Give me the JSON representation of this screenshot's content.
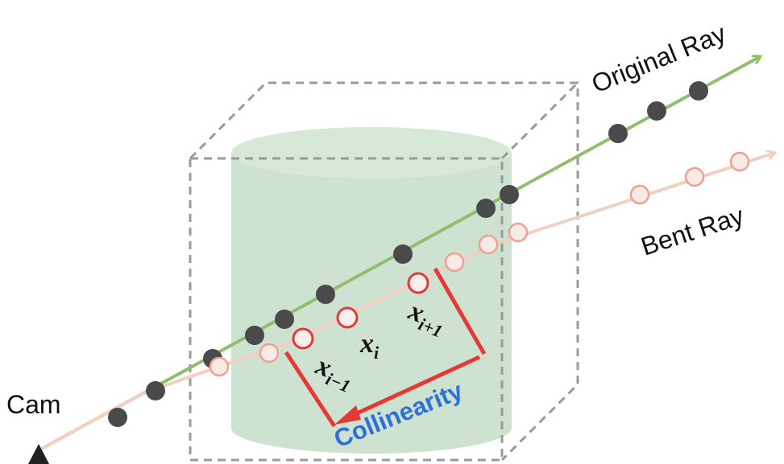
{
  "labels": {
    "original_ray": "Original Ray",
    "bent_ray": "Bent Ray",
    "cam": "Cam",
    "collinearity": "Collinearity"
  },
  "points": {
    "x_i_base": "x",
    "x_i_sub": "i",
    "x_i_prev_base": "x",
    "x_i_prev_sub": "i−1",
    "x_i_next_base": "x",
    "x_i_next_sub": "i+1"
  },
  "colors": {
    "original_ray": "#8fbf6a",
    "bent_ray": "#f3cfc0",
    "filled_point": "#4a4a4a",
    "hollow_point_stroke": "#f0a090",
    "highlight_point_stroke": "#e53935",
    "collinearity_bracket": "#e53935",
    "collinearity_text": "#2e6fd8",
    "cylinder": "#c8dfcc",
    "bounding_box": "#999999",
    "camera": "#222222"
  }
}
